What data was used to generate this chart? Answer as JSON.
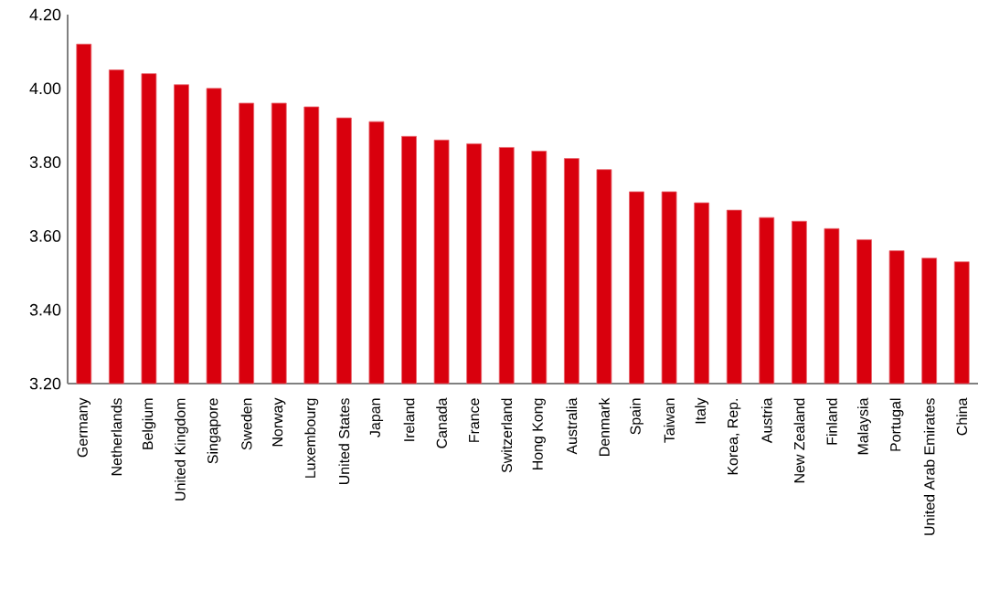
{
  "chart_data": {
    "type": "bar",
    "categories": [
      "Germany",
      "Netherlands",
      "Belgium",
      "United Kingdom",
      "Singapore",
      "Sweden",
      "Norway",
      "Luxembourg",
      "United States",
      "Japan",
      "Ireland",
      "Canada",
      "France",
      "Switzerland",
      "Hong Kong",
      "Australia",
      "Denmark",
      "Spain",
      "Taiwan",
      "Italy",
      "Korea, Rep.",
      "Austria",
      "New Zealand",
      "Finland",
      "Malaysia",
      "Portugal",
      "United Arab Emirates",
      "China"
    ],
    "values": [
      4.12,
      4.05,
      4.04,
      4.01,
      4.0,
      3.96,
      3.96,
      3.95,
      3.92,
      3.91,
      3.87,
      3.86,
      3.85,
      3.84,
      3.83,
      3.81,
      3.78,
      3.72,
      3.72,
      3.69,
      3.67,
      3.65,
      3.64,
      3.62,
      3.59,
      3.56,
      3.54,
      3.53
    ],
    "color": "#d9000d",
    "ylim": [
      3.2,
      4.2
    ],
    "yticks": [
      {
        "value": 3.2,
        "label": "3.20"
      },
      {
        "value": 3.4,
        "label": "3.40"
      },
      {
        "value": 3.6,
        "label": "3.60"
      },
      {
        "value": 3.8,
        "label": "3.80"
      },
      {
        "value": 4.0,
        "label": "4.00"
      },
      {
        "value": 4.2,
        "label": "4.20"
      }
    ],
    "grid": false
  }
}
